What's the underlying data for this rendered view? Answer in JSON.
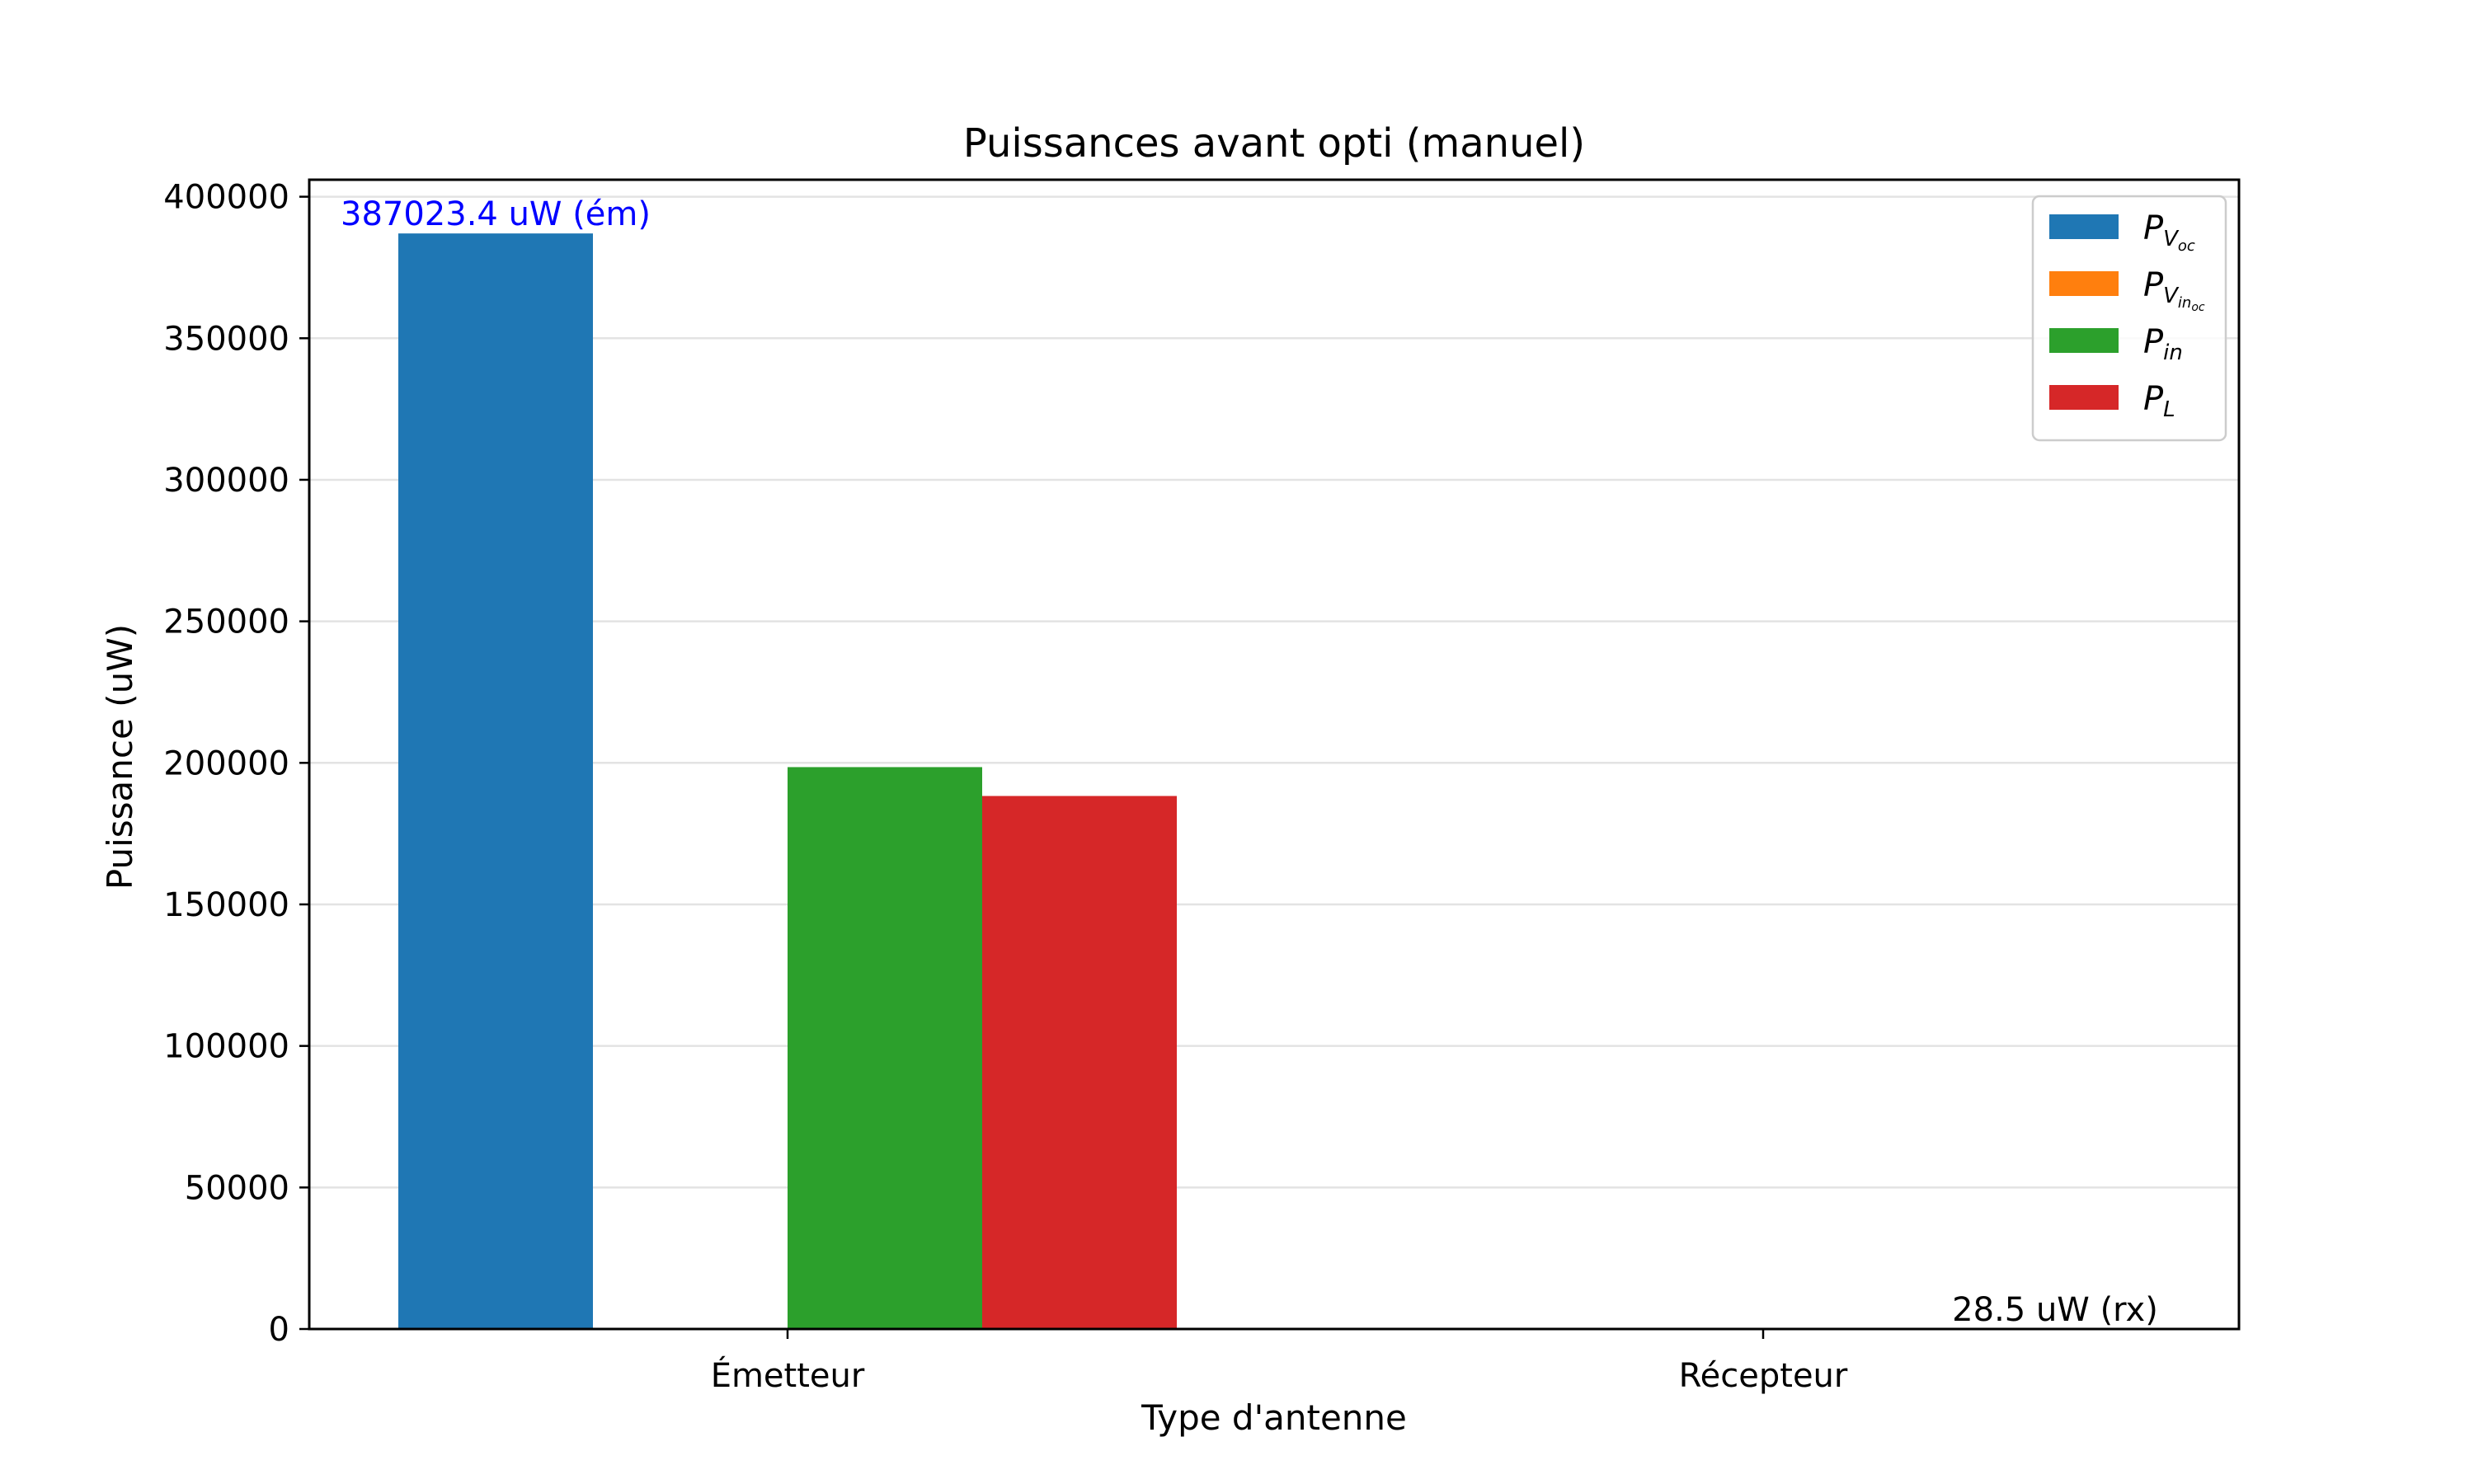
{
  "chart_data": {
    "type": "bar",
    "title": "Puissances avant opti (manuel)",
    "xlabel": "Type d'antenne",
    "ylabel": "Puissance (uW)",
    "categories": [
      "Émetteur",
      "Récepteur"
    ],
    "ylim": [
      0,
      406000
    ],
    "yticks": [
      0,
      50000,
      100000,
      150000,
      200000,
      250000,
      300000,
      350000,
      400000
    ],
    "grid": "horizontal",
    "legend_position": "top-right",
    "series": [
      {
        "name": "P_{V_{oc}}",
        "label_main": "P",
        "label_sub": "V",
        "label_subsub": "oc",
        "color": "#1f77b4",
        "values": [
          387023.4,
          0
        ]
      },
      {
        "name": "P_{V_{in_{oc}}}",
        "label_main": "P",
        "label_sub": "V",
        "label_subsub": "in",
        "label_subsubsub": "oc",
        "color": "#ff7f0e",
        "values": [
          0,
          0
        ]
      },
      {
        "name": "P_{in}",
        "label_main": "P",
        "label_sub": "in",
        "color": "#2ca02c",
        "values": [
          198500,
          0
        ]
      },
      {
        "name": "P_{L}",
        "label_main": "P",
        "label_sub": "L",
        "color": "#d62728",
        "values": [
          188300,
          28.5
        ]
      }
    ],
    "annotations": [
      {
        "text": "387023.4 uW (ém)",
        "category": 0,
        "series": 0,
        "color": "#0000ff"
      },
      {
        "text": "28.5 uW (rx)",
        "category": 1,
        "series": 3,
        "color": "#000000"
      }
    ]
  }
}
